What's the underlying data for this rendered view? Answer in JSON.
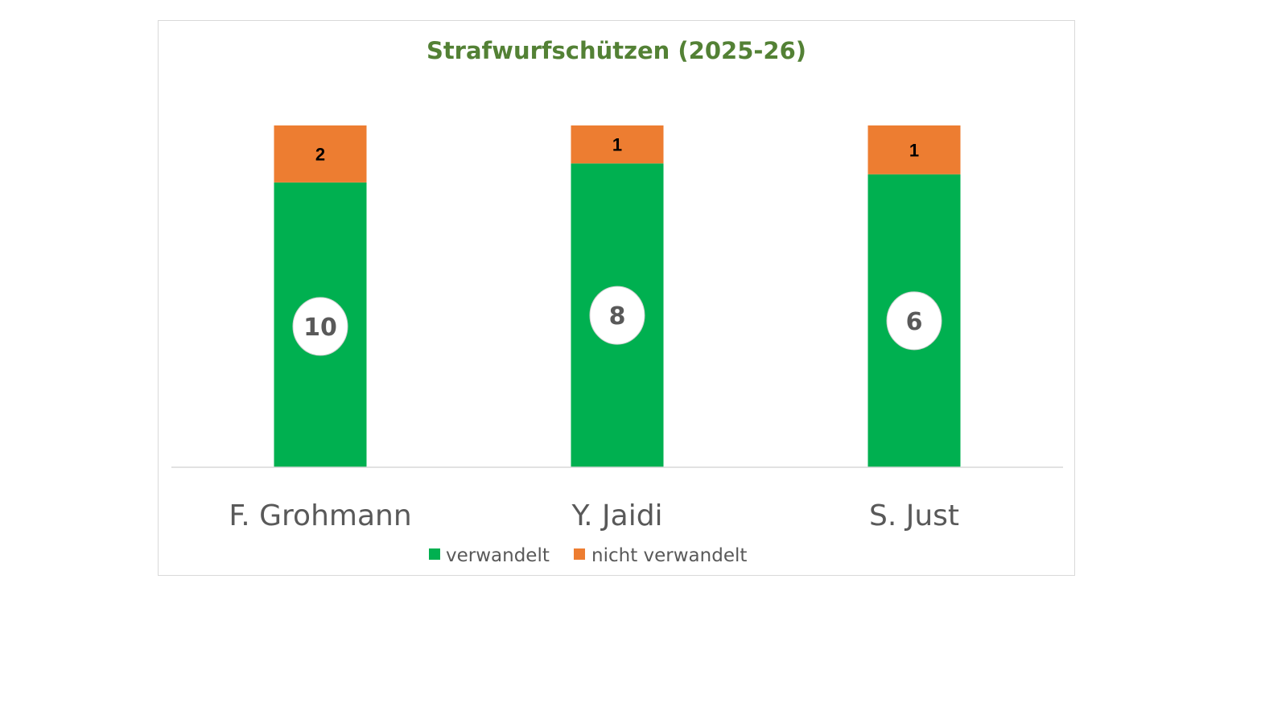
{
  "chart_data": {
    "type": "bar",
    "stacked": true,
    "normalized": true,
    "title": "Strafwurfschützen (2025-26)",
    "categories": [
      "F. Grohmann",
      "Y. Jaidi",
      "S. Just"
    ],
    "series": [
      {
        "name": "verwandelt",
        "color": "#00b050",
        "values": [
          10,
          8,
          6
        ]
      },
      {
        "name": "nicht verwandelt",
        "color": "#ed7d31",
        "values": [
          2,
          1,
          1
        ]
      }
    ],
    "legend": "bottom",
    "grid": false,
    "title_color": "#538135"
  }
}
